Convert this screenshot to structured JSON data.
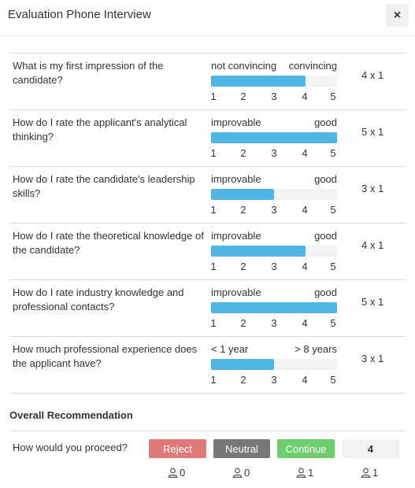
{
  "dialog": {
    "title": "Evaluation Phone Interview",
    "close_label": "×"
  },
  "ticks": [
    "1",
    "2",
    "3",
    "4",
    "5"
  ],
  "questions": [
    {
      "text": "What is my first impression of the candidate?",
      "low": "not convincing",
      "high": "convincing",
      "value": 4,
      "score": "4 x 1"
    },
    {
      "text": "How do I rate the applicant's analytical thinking?",
      "low": "improvable",
      "high": "good",
      "value": 5,
      "score": "5 x 1"
    },
    {
      "text": "How do I rate the candidate's leadership skills?",
      "low": "improvable",
      "high": "good",
      "value": 3,
      "score": "3 x 1"
    },
    {
      "text": "How do I rate the theoretical knowledge of the candidate?",
      "low": "improvable",
      "high": "good",
      "value": 4,
      "score": "4 x 1"
    },
    {
      "text": "How do I rate industry knowledge and professional contacts?",
      "low": "improvable",
      "high": "good",
      "value": 5,
      "score": "5 x 1"
    },
    {
      "text": "How much professional experience does the applicant have?",
      "low": "< 1 year",
      "high": "> 8 years",
      "value": 3,
      "score": "3 x 1"
    }
  ],
  "overall": {
    "title": "Overall Recommendation",
    "question": "How would you proceed?",
    "reject_label": "Reject",
    "neutral_label": "Neutral",
    "continue_label": "Continue",
    "result": "4",
    "votes": {
      "reject": "0",
      "neutral": "0",
      "continue": "1",
      "result": "1"
    }
  },
  "colors": {
    "slider_fill": "#4fb5e3",
    "reject": "#e07a7a",
    "neutral": "#777777",
    "continue": "#6fcf6f"
  },
  "icons": {
    "vote": "user-icon",
    "close": "close-icon"
  }
}
